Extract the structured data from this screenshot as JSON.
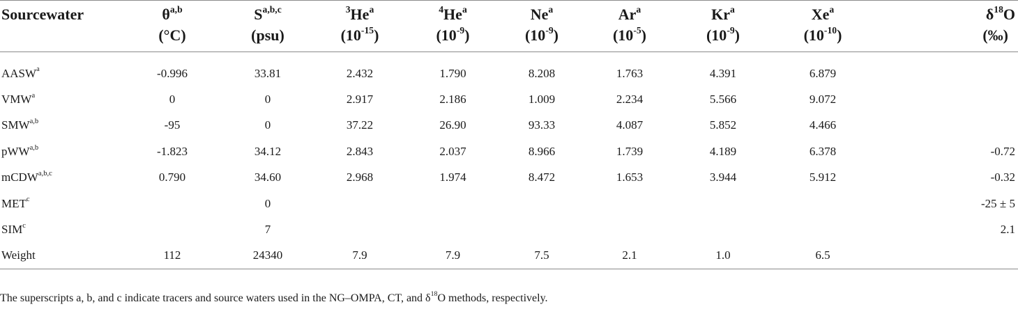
{
  "table": {
    "header": {
      "sourcewater": "Sourcewater",
      "theta": {
        "sym": "θ",
        "sup": "a,b",
        "unit": "(°C)"
      },
      "s": {
        "sym": "S",
        "sup": "a,b,c",
        "unit": "(psu)"
      },
      "he3": {
        "pre": "3",
        "sym": "He",
        "sup": "a",
        "unit_base": "(10",
        "unit_exp": "-15",
        "unit_close": ")"
      },
      "he4": {
        "pre": "4",
        "sym": "He",
        "sup": "a",
        "unit_base": "(10",
        "unit_exp": "-9",
        "unit_close": ")"
      },
      "ne": {
        "sym": "Ne",
        "sup": "a",
        "unit_base": "(10",
        "unit_exp": "-9",
        "unit_close": ")"
      },
      "ar": {
        "sym": "Ar",
        "sup": "a",
        "unit_base": "(10",
        "unit_exp": "-5",
        "unit_close": ")"
      },
      "kr": {
        "sym": "Kr",
        "sup": "a",
        "unit_base": "(10",
        "unit_exp": "-9",
        "unit_close": ")"
      },
      "xe": {
        "sym": "Xe",
        "sup": "a",
        "unit_base": "(10",
        "unit_exp": "-10",
        "unit_close": ")"
      },
      "d18o": {
        "pre": "δ",
        "sup": "18",
        "sym": "O",
        "unit": "(‰)"
      }
    },
    "rows": [
      {
        "name": "AASW",
        "sup": "a",
        "theta": "-0.996",
        "s": "33.81",
        "he3": "2.432",
        "he4": "1.790",
        "ne": "8.208",
        "ar": "1.763",
        "kr": "4.391",
        "xe": "6.879",
        "d18o": ""
      },
      {
        "name": "VMW",
        "sup": "a",
        "theta": "0",
        "s": "0",
        "he3": "2.917",
        "he4": "2.186",
        "ne": "1.009",
        "ar": "2.234",
        "kr": "5.566",
        "xe": "9.072",
        "d18o": ""
      },
      {
        "name": "SMW",
        "sup": "a,b",
        "theta": "-95",
        "s": "0",
        "he3": "37.22",
        "he4": "26.90",
        "ne": "93.33",
        "ar": "4.087",
        "kr": "5.852",
        "xe": "4.466",
        "d18o": ""
      },
      {
        "name": "pWW",
        "sup": "a,b",
        "theta": "-1.823",
        "s": "34.12",
        "he3": "2.843",
        "he4": "2.037",
        "ne": "8.966",
        "ar": "1.739",
        "kr": "4.189",
        "xe": "6.378",
        "d18o": "-0.72"
      },
      {
        "name": "mCDW",
        "sup": "a,b,c",
        "theta": "0.790",
        "s": "34.60",
        "he3": "2.968",
        "he4": "1.974",
        "ne": "8.472",
        "ar": "1.653",
        "kr": "3.944",
        "xe": "5.912",
        "d18o": "-0.32"
      },
      {
        "name": "MET",
        "sup": "c",
        "theta": "",
        "s": "0",
        "he3": "",
        "he4": "",
        "ne": "",
        "ar": "",
        "kr": "",
        "xe": "",
        "d18o": "-25 ± 5"
      },
      {
        "name": "SIM",
        "sup": "c",
        "theta": "",
        "s": "7",
        "he3": "",
        "he4": "",
        "ne": "",
        "ar": "",
        "kr": "",
        "xe": "",
        "d18o": "2.1"
      },
      {
        "name": "Weight",
        "sup": "",
        "theta": "112",
        "s": "24340",
        "he3": "7.9",
        "he4": "7.9",
        "ne": "7.5",
        "ar": "2.1",
        "kr": "1.0",
        "xe": "6.5",
        "d18o": ""
      }
    ]
  },
  "footnote": {
    "before": "The superscripts a, b, and c indicate tracers and source waters used in the NG–OMPA, CT, and δ",
    "sup": "18",
    "after": "O methods, respectively."
  }
}
